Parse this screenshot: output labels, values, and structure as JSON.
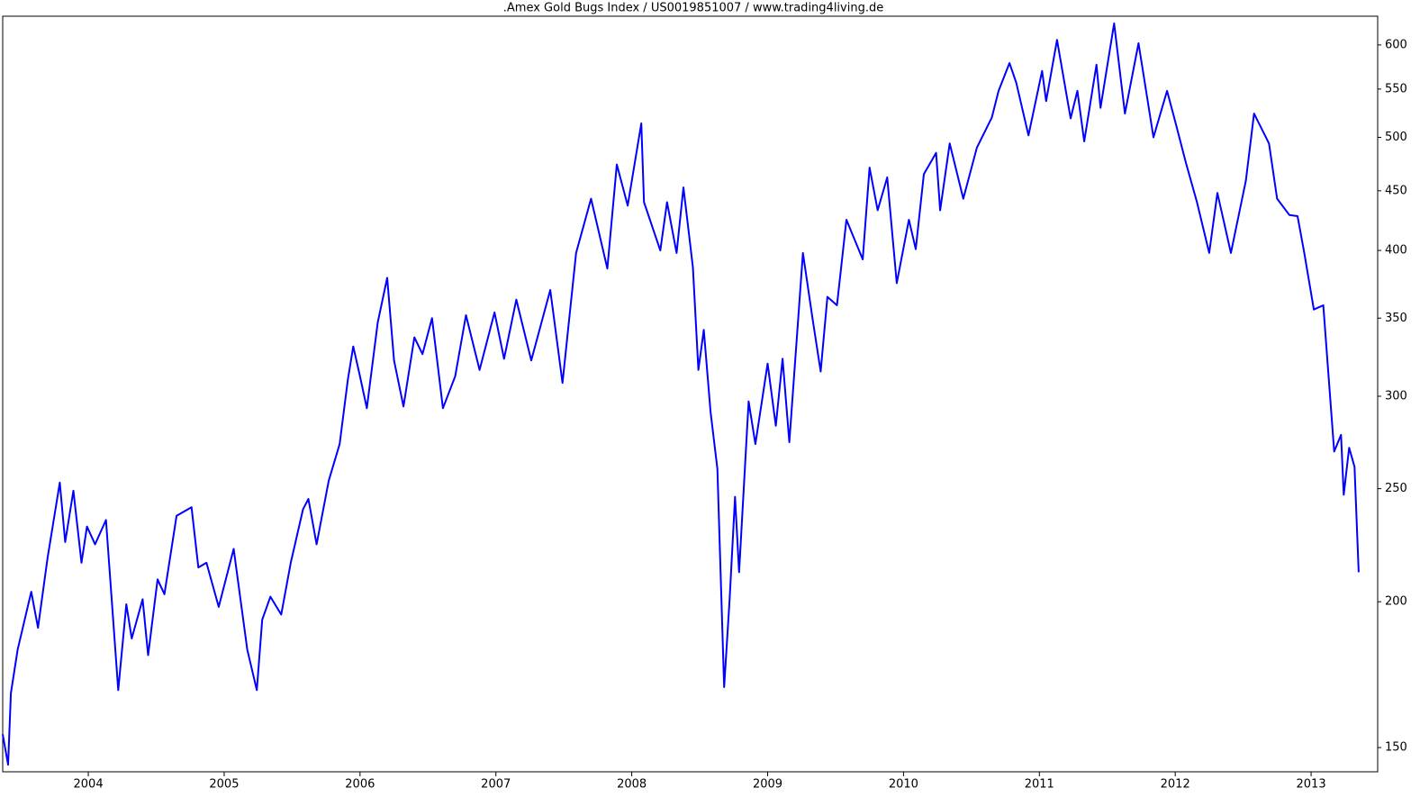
{
  "chart_data": {
    "type": "line",
    "title": ".Amex Gold Bugs Index / US0019851007 / www.trading4living.de",
    "log_y": true,
    "y_axis_side": "right",
    "xlim": [
      2003.37,
      2013.49
    ],
    "ylim": [
      143,
      635
    ],
    "xticks": [
      2004,
      2005,
      2006,
      2007,
      2008,
      2009,
      2010,
      2011,
      2012,
      2013
    ],
    "yticks": [
      150,
      200,
      250,
      300,
      350,
      400,
      450,
      500,
      550,
      600
    ],
    "x": [
      2003.37,
      2003.41,
      2003.43,
      2003.48,
      2003.58,
      2003.63,
      2003.7,
      2003.79,
      2003.83,
      2003.89,
      2003.95,
      2003.99,
      2004.05,
      2004.13,
      2004.22,
      2004.28,
      2004.32,
      2004.4,
      2004.44,
      2004.51,
      2004.56,
      2004.65,
      2004.76,
      2004.81,
      2004.87,
      2004.96,
      2005.07,
      2005.17,
      2005.24,
      2005.28,
      2005.34,
      2005.42,
      2005.49,
      2005.58,
      2005.62,
      2005.68,
      2005.77,
      2005.85,
      2005.91,
      2005.95,
      2006.0,
      2006.05,
      2006.13,
      2006.2,
      2006.25,
      2006.32,
      2006.4,
      2006.46,
      2006.53,
      2006.61,
      2006.7,
      2006.78,
      2006.88,
      2006.99,
      2007.06,
      2007.15,
      2007.26,
      2007.4,
      2007.49,
      2007.59,
      2007.7,
      2007.82,
      2007.89,
      2007.97,
      2008.07,
      2008.09,
      2008.21,
      2008.26,
      2008.33,
      2008.38,
      2008.45,
      2008.49,
      2008.53,
      2008.58,
      2008.63,
      2008.68,
      2008.72,
      2008.76,
      2008.79,
      2008.86,
      2008.91,
      2009.0,
      2009.06,
      2009.11,
      2009.16,
      2009.26,
      2009.33,
      2009.39,
      2009.44,
      2009.51,
      2009.58,
      2009.7,
      2009.75,
      2009.81,
      2009.88,
      2009.95,
      2010.04,
      2010.09,
      2010.15,
      2010.24,
      2010.27,
      2010.34,
      2010.44,
      2010.54,
      2010.65,
      2010.7,
      2010.78,
      2010.83,
      2010.92,
      2011.02,
      2011.05,
      2011.13,
      2011.23,
      2011.28,
      2011.33,
      2011.42,
      2011.45,
      2011.55,
      2011.63,
      2011.73,
      2011.84,
      2011.94,
      2011.99,
      2012.08,
      2012.16,
      2012.25,
      2012.31,
      2012.41,
      2012.52,
      2012.58,
      2012.69,
      2012.75,
      2012.84,
      2012.9,
      2012.95,
      2013.02,
      2013.09,
      2013.17,
      2013.22,
      2013.24,
      2013.28,
      2013.32,
      2013.35
    ],
    "series": [
      {
        "color": "#0000ff",
        "values": [
          154,
          145,
          167,
          182,
          204,
          190,
          218,
          253,
          225,
          249,
          216,
          232,
          224,
          235,
          168,
          199,
          186,
          201,
          180,
          209,
          203,
          237,
          241,
          214,
          216,
          198,
          222,
          182,
          168,
          193,
          202,
          195,
          216,
          240,
          245,
          224,
          254,
          273,
          310,
          331,
          312,
          293,
          347,
          379,
          322,
          294,
          337,
          326,
          350,
          293,
          312,
          352,
          316,
          354,
          323,
          363,
          322,
          370,
          308,
          398,
          443,
          386,
          474,
          437,
          514,
          440,
          400,
          440,
          398,
          453,
          387,
          316,
          342,
          291,
          260,
          169,
          201,
          246,
          212,
          297,
          273,
          320,
          283,
          323,
          274,
          398,
          350,
          315,
          365,
          359,
          425,
          393,
          471,
          433,
          462,
          375,
          425,
          401,
          465,
          485,
          433,
          494,
          443,
          490,
          520,
          548,
          579,
          557,
          502,
          570,
          537,
          606,
          519,
          548,
          496,
          577,
          530,
          626,
          524,
          602,
          500,
          548,
          521,
          475,
          440,
          398,
          448,
          398,
          459,
          524,
          494,
          443,
          429,
          428,
          398,
          356,
          359,
          269,
          278,
          247,
          271,
          261,
          212
        ]
      }
    ]
  }
}
